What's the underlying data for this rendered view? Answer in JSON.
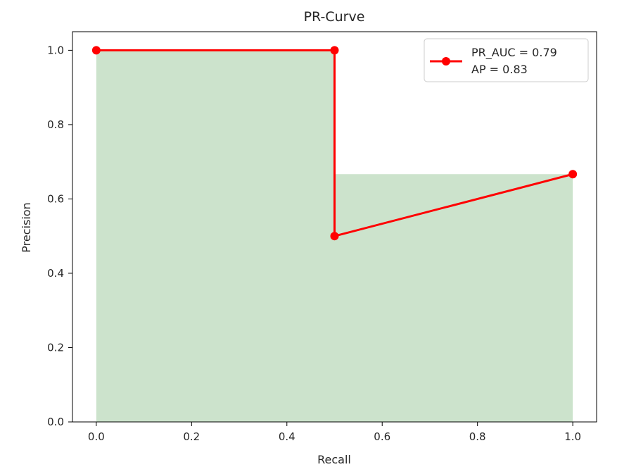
{
  "chart_data": {
    "type": "line",
    "title": "PR-Curve",
    "xlabel": "Recall",
    "ylabel": "Precision",
    "xlim": [
      -0.05,
      1.05
    ],
    "ylim": [
      0.0,
      1.05
    ],
    "xticks": [
      0.0,
      0.2,
      0.4,
      0.6,
      0.8,
      1.0
    ],
    "xtick_labels": [
      "0.0",
      "0.2",
      "0.4",
      "0.6",
      "0.8",
      "1.0"
    ],
    "yticks": [
      0.0,
      0.2,
      0.4,
      0.6,
      0.8,
      1.0
    ],
    "ytick_labels": [
      "0.0",
      "0.2",
      "0.4",
      "0.6",
      "0.8",
      "1.0"
    ],
    "grid": false,
    "legend_placement": "top-right",
    "legend": [
      "PR_AUC = 0.79",
      "AP = 0.83"
    ],
    "series": [
      {
        "x": [
          0.0,
          0.5,
          0.5,
          1.0
        ],
        "y": [
          1.0,
          1.0,
          0.5,
          0.6667
        ],
        "color": "#ff0000",
        "marker": "circle"
      }
    ],
    "fill": {
      "type": "step-post",
      "x": [
        0.0,
        0.5,
        1.0
      ],
      "y": [
        1.0,
        0.6667,
        0.6667
      ],
      "color": "#cce3cc"
    }
  }
}
